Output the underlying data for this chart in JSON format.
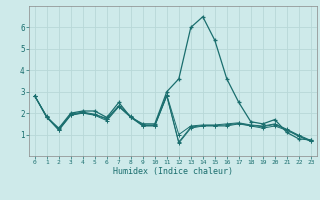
{
  "xlabel": "Humidex (Indice chaleur)",
  "bg_color": "#ceeaea",
  "grid_color": "#b8d8d8",
  "line_color": "#1a6e6e",
  "x_ticks": [
    0,
    1,
    2,
    3,
    4,
    5,
    6,
    7,
    8,
    9,
    10,
    11,
    12,
    13,
    14,
    15,
    16,
    17,
    18,
    19,
    20,
    21,
    22,
    23
  ],
  "ylim": [
    0.0,
    7.0
  ],
  "y_ticks": [
    1,
    2,
    3,
    4,
    5,
    6
  ],
  "series": [
    [
      2.8,
      1.8,
      1.3,
      2.0,
      2.1,
      2.1,
      1.8,
      2.5,
      1.8,
      1.5,
      1.5,
      3.0,
      3.6,
      6.0,
      6.5,
      5.4,
      3.6,
      2.5,
      1.6,
      1.5,
      1.7,
      1.1,
      0.8,
      0.75
    ],
    [
      2.8,
      1.85,
      1.25,
      1.95,
      2.05,
      1.95,
      1.75,
      2.35,
      1.85,
      1.45,
      1.45,
      2.85,
      1.0,
      1.4,
      1.45,
      1.45,
      1.5,
      1.55,
      1.45,
      1.4,
      1.5,
      1.25,
      0.97,
      0.73
    ],
    [
      2.8,
      1.82,
      1.22,
      1.92,
      2.02,
      1.92,
      1.72,
      2.32,
      1.82,
      1.42,
      1.42,
      2.82,
      0.65,
      1.35,
      1.42,
      1.42,
      1.45,
      1.52,
      1.42,
      1.37,
      1.47,
      1.22,
      0.94,
      0.7
    ],
    [
      2.8,
      1.8,
      1.2,
      1.9,
      2.0,
      1.9,
      1.65,
      2.3,
      1.8,
      1.4,
      1.4,
      2.8,
      0.6,
      1.3,
      1.4,
      1.4,
      1.4,
      1.5,
      1.4,
      1.3,
      1.4,
      1.2,
      0.92,
      0.68
    ]
  ]
}
